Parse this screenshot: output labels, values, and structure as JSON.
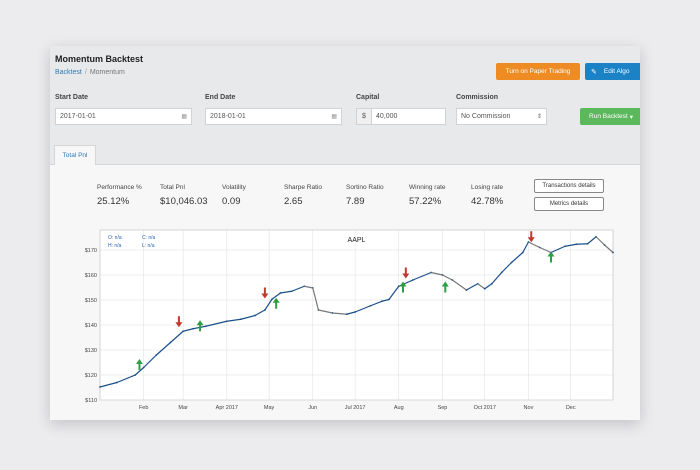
{
  "app": {
    "title": "Momentum Backtest",
    "breadcrumb": {
      "root": "Backtest",
      "current": "Momentum"
    },
    "buttons": {
      "paper_trading": "Turn on Paper Trading",
      "edit_algo": "Edit Algo",
      "run_backtest": "Run Backtest"
    }
  },
  "form": {
    "start_date": {
      "label": "Start Date",
      "value": "2017-01-01"
    },
    "end_date": {
      "label": "End Date",
      "value": "2018-01-01"
    },
    "capital": {
      "label": "Capital",
      "prefix": "$",
      "value": "40,000"
    },
    "commission": {
      "label": "Commission",
      "value": "No Commission"
    }
  },
  "tabs": [
    {
      "label": "Total Pnl",
      "active": true
    }
  ],
  "metrics": [
    {
      "label": "Performance %",
      "value": "25.12%"
    },
    {
      "label": "Total Pnl",
      "value": "$10,046.03"
    },
    {
      "label": "Volatility",
      "value": "0.09"
    },
    {
      "label": "Sharpe Ratio",
      "value": "2.65"
    },
    {
      "label": "Sortino Ratio",
      "value": "7.89"
    },
    {
      "label": "Winning rate",
      "value": "57.22%"
    },
    {
      "label": "Losing rate",
      "value": "42.78%"
    }
  ],
  "detail_buttons": {
    "transactions": "Transactions details",
    "metrics": "Metrics details"
  },
  "colors": {
    "buy_marker": "#2e9e44",
    "sell_marker": "#c0392b",
    "candle_up": "#1a4f8a",
    "candle_down": "#777777"
  },
  "chart_data": {
    "type": "line",
    "title": "AAPL",
    "ohlc_readout": [
      {
        "key": "O",
        "value": "n/a"
      },
      {
        "key": "C",
        "value": "n/a"
      },
      {
        "key": "H",
        "value": "n/a"
      },
      {
        "key": "L",
        "value": "n/a"
      }
    ],
    "y_ticks": [
      110,
      120,
      130,
      140,
      150,
      160,
      170
    ],
    "ylim": [
      110,
      178
    ],
    "x_ticks": [
      {
        "label": "Feb",
        "day": 31
      },
      {
        "label": "Mar",
        "day": 59
      },
      {
        "label": "Apr 2017",
        "day": 90
      },
      {
        "label": "May",
        "day": 120
      },
      {
        "label": "Jun",
        "day": 151
      },
      {
        "label": "Jul 2017",
        "day": 181
      },
      {
        "label": "Aug",
        "day": 212
      },
      {
        "label": "Sep",
        "day": 243
      },
      {
        "label": "Oct 2017",
        "day": 273
      },
      {
        "label": "Nov",
        "day": 304
      },
      {
        "label": "Dec",
        "day": 334
      }
    ],
    "xlim": [
      0,
      364
    ],
    "series": [
      {
        "values": [
          [
            0,
            115.2
          ],
          [
            12,
            117
          ],
          [
            25,
            120
          ],
          [
            31,
            123
          ],
          [
            40,
            128
          ],
          [
            50,
            133
          ],
          [
            59,
            137.5
          ],
          [
            66,
            138.5
          ],
          [
            75,
            139.5
          ],
          [
            90,
            141.5
          ],
          [
            100,
            142.3
          ],
          [
            110,
            143.8
          ],
          [
            117,
            146
          ],
          [
            122,
            150.3
          ],
          [
            128,
            152.8
          ],
          [
            136,
            153.5
          ],
          [
            145,
            155.5
          ],
          [
            151,
            154.8
          ],
          [
            155,
            146
          ],
          [
            165,
            144.8
          ],
          [
            175,
            144.3
          ],
          [
            181,
            145.2
          ],
          [
            192,
            147.7
          ],
          [
            200,
            149.5
          ],
          [
            205,
            150.2
          ],
          [
            212,
            155.5
          ],
          [
            222,
            158
          ],
          [
            235,
            161
          ],
          [
            243,
            160
          ],
          [
            250,
            158
          ],
          [
            260,
            154
          ],
          [
            268,
            156.5
          ],
          [
            273,
            154.5
          ],
          [
            278,
            156.5
          ],
          [
            285,
            161
          ],
          [
            292,
            165
          ],
          [
            300,
            169
          ],
          [
            304,
            173.2
          ],
          [
            312,
            171
          ],
          [
            320,
            169
          ],
          [
            330,
            171.5
          ],
          [
            338,
            172.3
          ],
          [
            346,
            172.5
          ],
          [
            352,
            175.3
          ],
          [
            358,
            172
          ],
          [
            364,
            169
          ]
        ]
      }
    ],
    "signals": [
      {
        "type": "buy",
        "day": 28,
        "value": 124
      },
      {
        "type": "sell",
        "day": 56,
        "value": 141.5
      },
      {
        "type": "buy",
        "day": 71,
        "value": 139.5
      },
      {
        "type": "sell",
        "day": 117,
        "value": 153
      },
      {
        "type": "buy",
        "day": 125,
        "value": 148.5
      },
      {
        "type": "sell",
        "day": 217,
        "value": 161
      },
      {
        "type": "buy",
        "day": 215,
        "value": 155
      },
      {
        "type": "buy",
        "day": 245,
        "value": 155
      },
      {
        "type": "sell",
        "day": 306,
        "value": 175.5
      },
      {
        "type": "buy",
        "day": 320,
        "value": 167
      }
    ]
  }
}
